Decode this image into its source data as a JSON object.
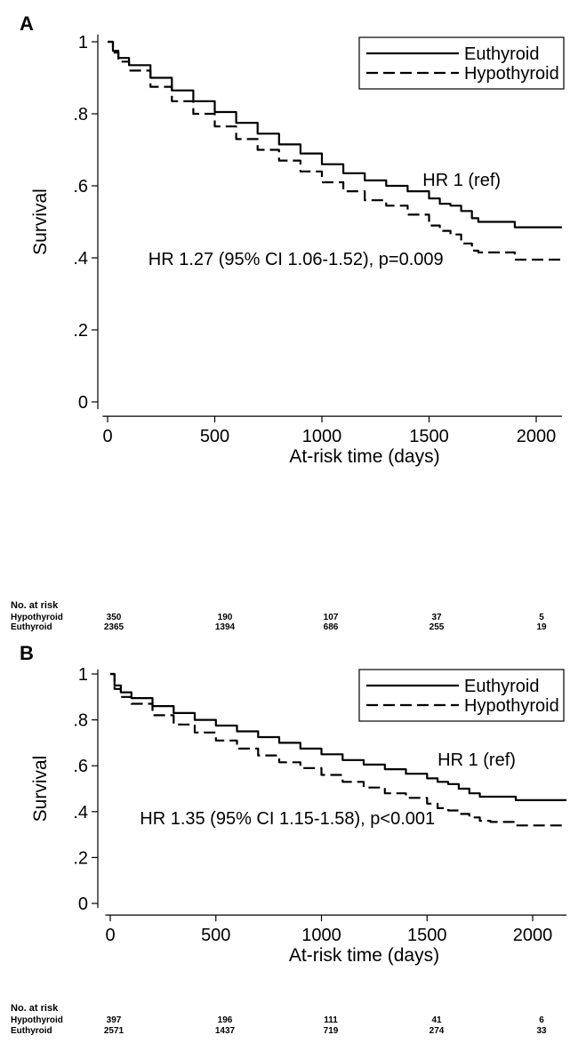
{
  "chart_data": [
    {
      "type": "line",
      "panel": "A",
      "xlabel": "At-risk time (days)",
      "ylabel": "Survival",
      "xlim": [
        -40,
        2120
      ],
      "ylim": [
        -0.02,
        1.02
      ],
      "xticks": [
        0,
        500,
        1000,
        1500,
        2000
      ],
      "xtick_labels": [
        "0",
        "500",
        "1000",
        "1500",
        "2000"
      ],
      "yticks": [
        0,
        0.2,
        0.4,
        0.6,
        0.8,
        1
      ],
      "ytick_labels": [
        "0",
        ".2",
        ".4",
        ".6",
        ".8",
        "1"
      ],
      "grid": false,
      "legend_position": "top-right",
      "series": [
        {
          "name": "Euthyroid",
          "style": "solid",
          "x": [
            0,
            25,
            50,
            100,
            200,
            300,
            400,
            500,
            600,
            700,
            800,
            900,
            1000,
            1100,
            1200,
            1300,
            1400,
            1500,
            1550,
            1600,
            1650,
            1700,
            1730,
            1800,
            1880,
            1900,
            2000,
            2120
          ],
          "y": [
            1.0,
            0.975,
            0.955,
            0.935,
            0.9,
            0.865,
            0.835,
            0.805,
            0.775,
            0.745,
            0.715,
            0.69,
            0.66,
            0.635,
            0.615,
            0.6,
            0.585,
            0.565,
            0.55,
            0.545,
            0.53,
            0.51,
            0.5,
            0.5,
            0.5,
            0.485,
            0.485,
            0.485
          ]
        },
        {
          "name": "Hypothyroid",
          "style": "dashed",
          "x": [
            0,
            25,
            50,
            100,
            200,
            300,
            400,
            500,
            600,
            700,
            800,
            900,
            1000,
            1100,
            1200,
            1300,
            1400,
            1500,
            1550,
            1600,
            1650,
            1700,
            1730,
            1800,
            1880,
            1900,
            2000,
            2120
          ],
          "y": [
            1.0,
            0.97,
            0.945,
            0.92,
            0.875,
            0.835,
            0.8,
            0.765,
            0.73,
            0.7,
            0.67,
            0.64,
            0.61,
            0.585,
            0.56,
            0.545,
            0.52,
            0.49,
            0.475,
            0.465,
            0.44,
            0.42,
            0.415,
            0.415,
            0.415,
            0.395,
            0.395,
            0.395
          ]
        }
      ],
      "annotations": [
        {
          "text": "HR 1 (ref)",
          "x": 1470,
          "y": 0.6
        },
        {
          "text": "HR 1.27 (95% CI 1.06-1.52), p=0.009",
          "x": 190,
          "y": 0.38
        }
      ],
      "risk_table": {
        "title": "No. at risk",
        "time_points": [
          0,
          500,
          1000,
          1500,
          2000
        ],
        "rows": [
          {
            "label": "Hypothyroid",
            "values": [
              "350",
              "190",
              "107",
              "37",
              "5"
            ]
          },
          {
            "label": "Euthyroid",
            "values": [
              "2365",
              "1394",
              "686",
              "255",
              "19"
            ]
          }
        ]
      }
    },
    {
      "type": "line",
      "panel": "B",
      "xlabel": "At-risk time (days)",
      "ylabel": "Survival",
      "xlim": [
        -40,
        2160
      ],
      "ylim": [
        -0.02,
        1.02
      ],
      "xticks": [
        0,
        500,
        1000,
        1500,
        2000
      ],
      "xtick_labels": [
        "0",
        "500",
        "1000",
        "1500",
        "2000"
      ],
      "yticks": [
        0,
        0.2,
        0.4,
        0.6,
        0.8,
        1
      ],
      "ytick_labels": [
        "0",
        ".2",
        ".4",
        ".6",
        ".8",
        "1"
      ],
      "grid": false,
      "legend_position": "top-right",
      "series": [
        {
          "name": "Euthyroid",
          "style": "solid",
          "x": [
            0,
            20,
            50,
            100,
            200,
            300,
            400,
            500,
            600,
            700,
            800,
            900,
            1000,
            1100,
            1200,
            1300,
            1400,
            1500,
            1550,
            1600,
            1650,
            1700,
            1750,
            1800,
            1900,
            1920,
            2000,
            2160
          ],
          "y": [
            1.0,
            0.95,
            0.92,
            0.895,
            0.86,
            0.83,
            0.8,
            0.775,
            0.75,
            0.725,
            0.7,
            0.675,
            0.65,
            0.625,
            0.605,
            0.585,
            0.565,
            0.545,
            0.53,
            0.52,
            0.5,
            0.48,
            0.465,
            0.465,
            0.465,
            0.45,
            0.45,
            0.45
          ]
        },
        {
          "name": "Hypothyroid",
          "style": "dashed",
          "x": [
            0,
            20,
            50,
            100,
            200,
            300,
            400,
            500,
            600,
            700,
            800,
            900,
            1000,
            1100,
            1200,
            1300,
            1400,
            1500,
            1550,
            1600,
            1650,
            1700,
            1750,
            1800,
            1900,
            1920,
            2000,
            2160
          ],
          "y": [
            1.0,
            0.935,
            0.9,
            0.87,
            0.82,
            0.78,
            0.745,
            0.71,
            0.675,
            0.645,
            0.615,
            0.59,
            0.56,
            0.53,
            0.505,
            0.48,
            0.46,
            0.435,
            0.415,
            0.405,
            0.39,
            0.375,
            0.36,
            0.355,
            0.355,
            0.34,
            0.34,
            0.34
          ]
        }
      ],
      "annotations": [
        {
          "text": "HR 1 (ref)",
          "x": 1550,
          "y": 0.6
        },
        {
          "text": "HR 1.35 (95% CI 1.15-1.58), p<0.001",
          "x": 140,
          "y": 0.345
        }
      ],
      "risk_table": {
        "title": "No. at risk",
        "time_points": [
          0,
          500,
          1000,
          1500,
          2000
        ],
        "rows": [
          {
            "label": "Hypothyroid",
            "values": [
              "397",
              "196",
              "111",
              "41",
              "6"
            ]
          },
          {
            "label": "Euthyroid",
            "values": [
              "2571",
              "1437",
              "719",
              "274",
              "33"
            ]
          }
        ]
      }
    }
  ]
}
